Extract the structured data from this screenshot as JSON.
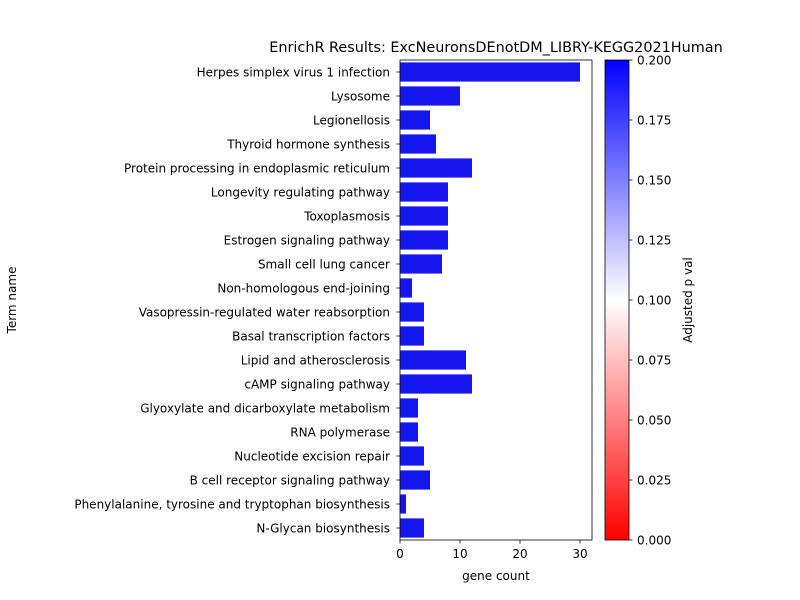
{
  "chart_data": {
    "type": "bar",
    "orientation": "horizontal",
    "title": "EnrichR Results: ExcNeuronsDEnotDM_LIBRY-KEGG2021Human",
    "xlabel": "gene count",
    "ylabel": "Term name",
    "xlim": [
      0,
      32
    ],
    "xticks": [
      0,
      10,
      20,
      30
    ],
    "grid": false,
    "categories": [
      "Herpes simplex virus 1 infection",
      "Lysosome",
      "Legionellosis",
      "Thyroid hormone synthesis",
      "Protein processing in endoplasmic reticulum",
      "Longevity regulating pathway",
      "Toxoplasmosis",
      "Estrogen signaling pathway",
      "Small cell lung cancer",
      "Non-homologous end-joining",
      "Vasopressin-regulated water reabsorption",
      "Basal transcription factors",
      "Lipid and atherosclerosis",
      "cAMP signaling pathway",
      "Glyoxylate and dicarboxylate metabolism",
      "RNA polymerase",
      "Nucleotide excision repair",
      "B cell receptor signaling pathway",
      "Phenylalanine, tyrosine and tryptophan biosynthesis",
      "N-Glycan biosynthesis"
    ],
    "values": [
      30,
      10,
      5,
      6,
      12,
      8,
      8,
      8,
      7,
      2,
      4,
      4,
      11,
      12,
      3,
      3,
      4,
      5,
      1,
      4
    ],
    "bar_color": "#1515ee",
    "colorbar": {
      "label": "Adjusted p val",
      "range": [
        0.0,
        0.2
      ],
      "ticks": [
        "0.000",
        "0.025",
        "0.050",
        "0.075",
        "0.100",
        "0.125",
        "0.150",
        "0.175",
        "0.200"
      ],
      "colors": [
        "#ff0000",
        "#ffffff",
        "#0000ff"
      ]
    }
  }
}
